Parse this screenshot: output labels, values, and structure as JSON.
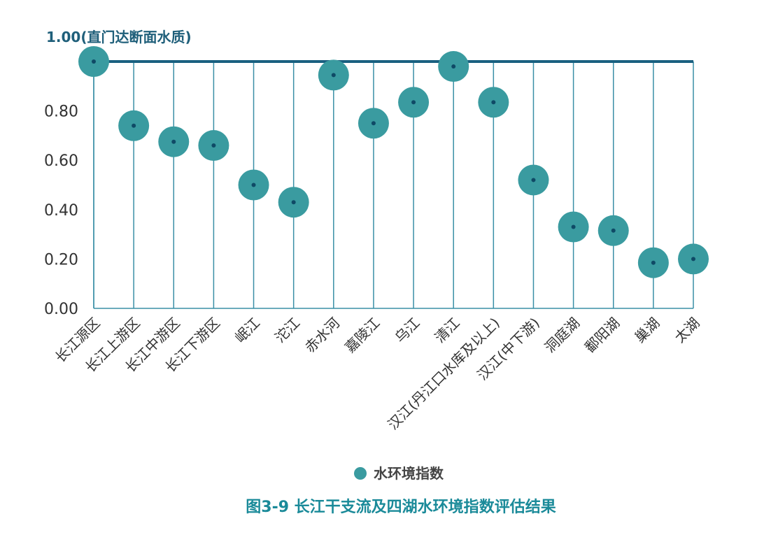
{
  "chart_data": {
    "type": "scatter",
    "title": "图3-9 长江干支流及四湖水环境指数评估结果",
    "reference_line": {
      "value": 1.0,
      "label": "1.00(直门达断面水质)"
    },
    "ylim": [
      0,
      1.0
    ],
    "yticks": [
      "0.00",
      "0.20",
      "0.40",
      "0.60",
      "0.80"
    ],
    "categories": [
      "长江源区",
      "长江上游区",
      "长江中游区",
      "长江下游区",
      "岷江",
      "沱江",
      "赤水河",
      "嘉陵江",
      "乌江",
      "清江",
      "汉江(丹江口水库及以上)",
      "汉江(中下游)",
      "洞庭湖",
      "鄱阳湖",
      "巢湖",
      "太湖"
    ],
    "series": [
      {
        "name": "水环境指数",
        "values": [
          1.0,
          0.74,
          0.675,
          0.66,
          0.5,
          0.43,
          0.945,
          0.75,
          0.835,
          0.98,
          0.835,
          0.52,
          0.33,
          0.315,
          0.185,
          0.2
        ]
      }
    ],
    "legend_position": "bottom-center",
    "grid": false
  },
  "colors": {
    "marker": "#3a9ba0",
    "line": "#1a6080",
    "center_dot": "#0f4a66",
    "axis": "#3a8fa6",
    "caption": "#1a8a99"
  }
}
